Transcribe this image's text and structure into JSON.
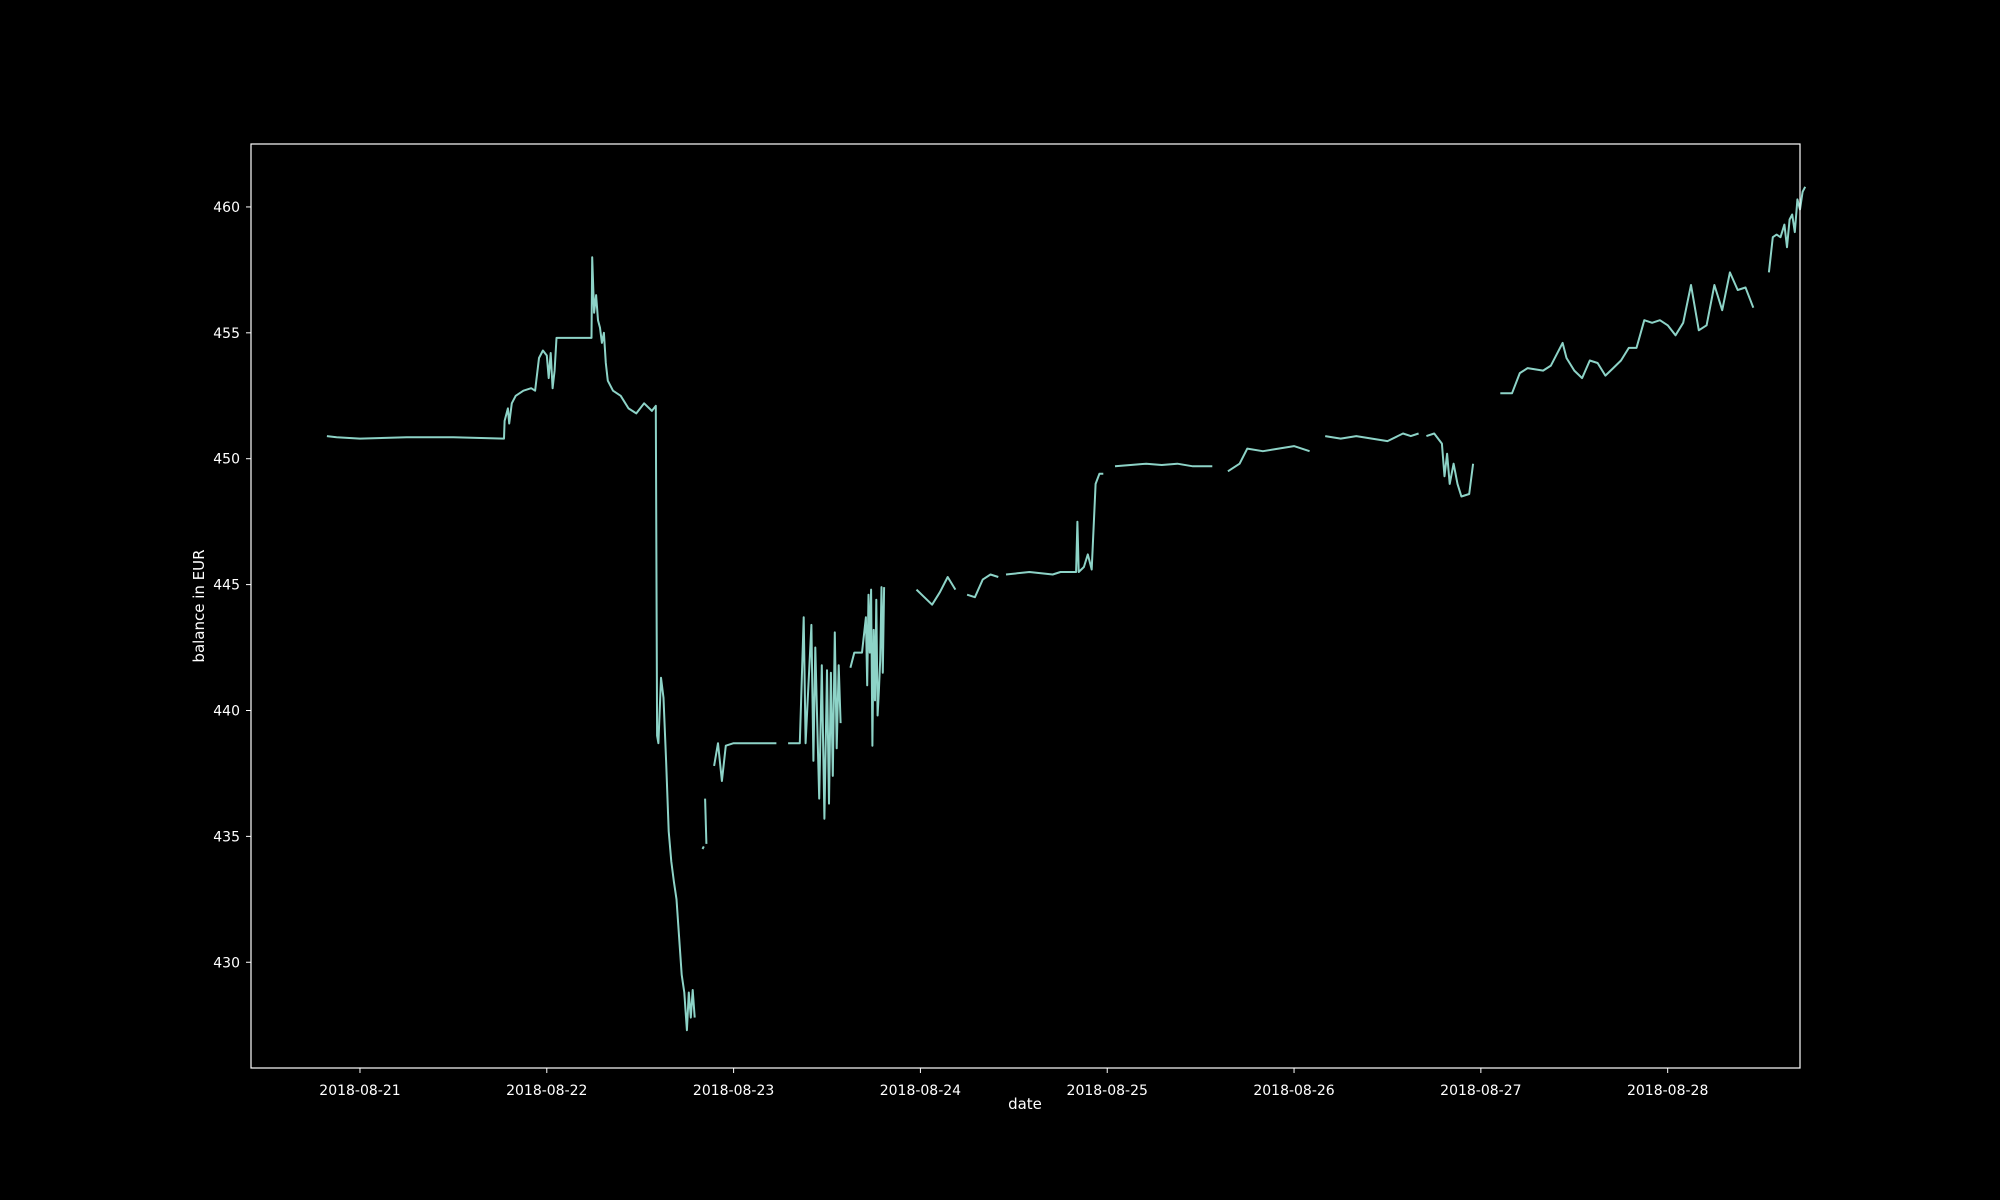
{
  "chart_data": {
    "type": "line",
    "title": "",
    "xlabel": "date",
    "ylabel": "balance in EUR",
    "x_ticks": [
      "2018-08-21",
      "2018-08-22",
      "2018-08-23",
      "2018-08-24",
      "2018-08-25",
      "2018-08-26",
      "2018-08-27",
      "2018-08-28"
    ],
    "y_ticks": [
      430,
      435,
      440,
      445,
      450,
      455,
      460
    ],
    "xlim": [
      "2018-08-20 10:00",
      "2018-08-28 17:00"
    ],
    "ylim": [
      425.8,
      462.5
    ],
    "grid": false,
    "legend": "none",
    "colors": {
      "background": "#000000",
      "axes": "#ffffff",
      "line": "#8dd3c7"
    },
    "series": [
      {
        "segments": [
          [
            [
              "2018-08-20 19:45",
              450.9
            ],
            [
              "2018-08-20 21:00",
              450.85
            ],
            [
              "2018-08-21 00:00",
              450.8
            ],
            [
              "2018-08-21 06:00",
              450.85
            ],
            [
              "2018-08-21 12:00",
              450.85
            ],
            [
              "2018-08-21 18:30",
              450.8
            ],
            [
              "2018-08-21 18:35",
              451.5
            ],
            [
              "2018-08-21 19:00",
              452.0
            ],
            [
              "2018-08-21 19:10",
              451.4
            ],
            [
              "2018-08-21 19:30",
              452.2
            ],
            [
              "2018-08-21 20:00",
              452.5
            ],
            [
              "2018-08-21 21:00",
              452.7
            ],
            [
              "2018-08-21 22:00",
              452.8
            ],
            [
              "2018-08-21 22:30",
              452.7
            ],
            [
              "2018-08-21 23:00",
              454.0
            ],
            [
              "2018-08-21 23:30",
              454.3
            ],
            [
              "2018-08-22 00:00",
              454.1
            ],
            [
              "2018-08-22 00:15",
              453.2
            ],
            [
              "2018-08-22 00:30",
              454.2
            ],
            [
              "2018-08-22 00:45",
              452.8
            ],
            [
              "2018-08-22 01:00",
              453.5
            ],
            [
              "2018-08-22 01:15",
              454.8
            ],
            [
              "2018-08-22 03:00",
              454.8
            ],
            [
              "2018-08-22 05:45",
              454.8
            ],
            [
              "2018-08-22 05:50",
              458.0
            ],
            [
              "2018-08-22 06:05",
              455.8
            ],
            [
              "2018-08-22 06:20",
              456.5
            ],
            [
              "2018-08-22 06:35",
              455.5
            ],
            [
              "2018-08-22 06:50",
              455.2
            ],
            [
              "2018-08-22 07:05",
              454.6
            ],
            [
              "2018-08-22 07:20",
              455.0
            ],
            [
              "2018-08-22 07:35",
              453.8
            ],
            [
              "2018-08-22 07:50",
              453.1
            ],
            [
              "2018-08-22 08:30",
              452.7
            ],
            [
              "2018-08-22 09:30",
              452.5
            ],
            [
              "2018-08-22 10:30",
              452.0
            ],
            [
              "2018-08-22 11:30",
              451.8
            ],
            [
              "2018-08-22 12:30",
              452.2
            ],
            [
              "2018-08-22 13:30",
              451.9
            ],
            [
              "2018-08-22 14:00",
              452.1
            ],
            [
              "2018-08-22 14:10",
              439.0
            ],
            [
              "2018-08-22 14:20",
              438.7
            ],
            [
              "2018-08-22 14:40",
              441.3
            ],
            [
              "2018-08-22 15:00",
              440.5
            ],
            [
              "2018-08-22 15:20",
              438.0
            ],
            [
              "2018-08-22 15:40",
              435.2
            ],
            [
              "2018-08-22 16:00",
              434.0
            ],
            [
              "2018-08-22 16:20",
              433.2
            ],
            [
              "2018-08-22 16:40",
              432.5
            ],
            [
              "2018-08-22 17:00",
              431.0
            ],
            [
              "2018-08-22 17:20",
              429.5
            ],
            [
              "2018-08-22 17:40",
              428.8
            ],
            [
              "2018-08-22 18:00",
              427.3
            ],
            [
              "2018-08-22 18:15",
              428.8
            ],
            [
              "2018-08-22 18:30",
              427.8
            ],
            [
              "2018-08-22 18:45",
              428.9
            ],
            [
              "2018-08-22 19:00",
              427.8
            ]
          ],
          [
            [
              "2018-08-22 20:00",
              434.5
            ],
            [
              "2018-08-22 20:10",
              434.6
            ]
          ],
          [
            [
              "2018-08-22 20:20",
              436.5
            ],
            [
              "2018-08-22 20:30",
              434.7
            ]
          ],
          [
            [
              "2018-08-22 21:30",
              437.8
            ],
            [
              "2018-08-22 22:00",
              438.7
            ],
            [
              "2018-08-22 22:30",
              437.2
            ],
            [
              "2018-08-22 23:00",
              438.6
            ],
            [
              "2018-08-23 00:00",
              438.7
            ],
            [
              "2018-08-23 03:00",
              438.7
            ],
            [
              "2018-08-23 05:30",
              438.7
            ]
          ],
          [
            [
              "2018-08-23 07:00",
              438.7
            ],
            [
              "2018-08-23 08:30",
              438.7
            ],
            [
              "2018-08-23 09:00",
              443.7
            ],
            [
              "2018-08-23 09:15",
              438.7
            ],
            [
              "2018-08-23 10:00",
              443.4
            ],
            [
              "2018-08-23 10:15",
              438.0
            ],
            [
              "2018-08-23 10:30",
              442.5
            ],
            [
              "2018-08-23 11:00",
              436.5
            ],
            [
              "2018-08-23 11:20",
              441.8
            ],
            [
              "2018-08-23 11:40",
              435.7
            ],
            [
              "2018-08-23 12:00",
              441.6
            ],
            [
              "2018-08-23 12:15",
              436.3
            ],
            [
              "2018-08-23 12:30",
              441.5
            ],
            [
              "2018-08-23 12:45",
              437.4
            ],
            [
              "2018-08-23 13:00",
              443.1
            ],
            [
              "2018-08-23 13:15",
              438.5
            ],
            [
              "2018-08-23 13:30",
              441.8
            ],
            [
              "2018-08-23 13:45",
              439.5
            ]
          ],
          [
            [
              "2018-08-23 15:00",
              441.7
            ],
            [
              "2018-08-23 15:30",
              442.3
            ],
            [
              "2018-08-23 16:30",
              442.3
            ],
            [
              "2018-08-23 17:00",
              443.7
            ],
            [
              "2018-08-23 17:10",
              441.0
            ],
            [
              "2018-08-23 17:20",
              444.6
            ],
            [
              "2018-08-23 17:30",
              442.3
            ],
            [
              "2018-08-23 17:40",
              444.8
            ],
            [
              "2018-08-23 17:50",
              438.6
            ],
            [
              "2018-08-23 18:00",
              443.2
            ],
            [
              "2018-08-23 18:10",
              440.4
            ],
            [
              "2018-08-23 18:20",
              444.4
            ],
            [
              "2018-08-23 18:30",
              439.8
            ],
            [
              "2018-08-23 18:40",
              440.8
            ],
            [
              "2018-08-23 18:50",
              442.0
            ],
            [
              "2018-08-23 19:00",
              444.9
            ],
            [
              "2018-08-23 19:10",
              441.5
            ],
            [
              "2018-08-23 19:20",
              444.9
            ]
          ],
          [
            [
              "2018-08-23 23:30",
              444.8
            ],
            [
              "2018-08-24 00:30",
              444.5
            ],
            [
              "2018-08-24 01:30",
              444.2
            ],
            [
              "2018-08-24 02:30",
              444.7
            ],
            [
              "2018-08-24 03:30",
              445.3
            ],
            [
              "2018-08-24 04:30",
              444.8
            ]
          ],
          [
            [
              "2018-08-24 06:00",
              444.6
            ],
            [
              "2018-08-24 07:00",
              444.5
            ],
            [
              "2018-08-24 08:00",
              445.2
            ],
            [
              "2018-08-24 09:00",
              445.4
            ],
            [
              "2018-08-24 10:00",
              445.3
            ]
          ],
          [
            [
              "2018-08-24 11:00",
              445.4
            ],
            [
              "2018-08-24 14:00",
              445.5
            ],
            [
              "2018-08-24 17:00",
              445.4
            ],
            [
              "2018-08-24 18:00",
              445.5
            ],
            [
              "2018-08-24 20:00",
              445.5
            ],
            [
              "2018-08-24 20:10",
              447.5
            ],
            [
              "2018-08-24 20:20",
              445.5
            ],
            [
              "2018-08-24 21:00",
              445.7
            ],
            [
              "2018-08-24 21:30",
              446.2
            ],
            [
              "2018-08-24 22:00",
              445.6
            ],
            [
              "2018-08-24 22:30",
              449.0
            ],
            [
              "2018-08-24 23:00",
              449.4
            ],
            [
              "2018-08-24 23:30",
              449.4
            ]
          ],
          [
            [
              "2018-08-25 01:00",
              449.7
            ],
            [
              "2018-08-25 03:00",
              449.75
            ],
            [
              "2018-08-25 05:00",
              449.8
            ],
            [
              "2018-08-25 07:00",
              449.75
            ],
            [
              "2018-08-25 09:00",
              449.8
            ],
            [
              "2018-08-25 11:00",
              449.7
            ],
            [
              "2018-08-25 13:30",
              449.7
            ]
          ],
          [
            [
              "2018-08-25 15:30",
              449.5
            ],
            [
              "2018-08-25 17:00",
              449.8
            ],
            [
              "2018-08-25 18:00",
              450.4
            ],
            [
              "2018-08-25 20:00",
              450.3
            ],
            [
              "2018-08-25 22:00",
              450.4
            ],
            [
              "2018-08-26 00:00",
              450.5
            ],
            [
              "2018-08-26 02:00",
              450.3
            ]
          ],
          [
            [
              "2018-08-26 04:00",
              450.9
            ],
            [
              "2018-08-26 06:00",
              450.8
            ],
            [
              "2018-08-26 08:00",
              450.9
            ],
            [
              "2018-08-26 10:00",
              450.8
            ],
            [
              "2018-08-26 12:00",
              450.7
            ],
            [
              "2018-08-26 14:00",
              451.0
            ],
            [
              "2018-08-26 15:00",
              450.9
            ],
            [
              "2018-08-26 16:00",
              451.0
            ]
          ],
          [
            [
              "2018-08-26 17:00",
              450.9
            ],
            [
              "2018-08-26 18:00",
              451.0
            ],
            [
              "2018-08-26 19:00",
              450.6
            ],
            [
              "2018-08-26 19:20",
              449.3
            ],
            [
              "2018-08-26 19:40",
              450.2
            ],
            [
              "2018-08-26 20:00",
              449.0
            ],
            [
              "2018-08-26 20:30",
              449.8
            ],
            [
              "2018-08-26 21:00",
              449.0
            ],
            [
              "2018-08-26 21:30",
              448.5
            ],
            [
              "2018-08-26 22:30",
              448.6
            ],
            [
              "2018-08-26 23:00",
              449.8
            ]
          ],
          [
            [
              "2018-08-27 02:30",
              452.6
            ],
            [
              "2018-08-27 04:00",
              452.6
            ],
            [
              "2018-08-27 05:00",
              453.4
            ],
            [
              "2018-08-27 06:00",
              453.6
            ],
            [
              "2018-08-27 08:00",
              453.5
            ],
            [
              "2018-08-27 09:00",
              453.7
            ],
            [
              "2018-08-27 10:30",
              454.6
            ],
            [
              "2018-08-27 11:00",
              454.0
            ],
            [
              "2018-08-27 12:00",
              453.5
            ],
            [
              "2018-08-27 13:00",
              453.2
            ],
            [
              "2018-08-27 14:00",
              453.9
            ],
            [
              "2018-08-27 15:00",
              453.8
            ],
            [
              "2018-08-27 16:00",
              453.3
            ],
            [
              "2018-08-27 17:00",
              453.6
            ],
            [
              "2018-08-27 18:00",
              453.9
            ],
            [
              "2018-08-27 19:00",
              454.4
            ],
            [
              "2018-08-27 20:00",
              454.4
            ],
            [
              "2018-08-27 21:00",
              455.5
            ],
            [
              "2018-08-27 22:00",
              455.4
            ],
            [
              "2018-08-27 23:00",
              455.5
            ],
            [
              "2018-08-28 00:00",
              455.3
            ],
            [
              "2018-08-28 01:00",
              454.9
            ],
            [
              "2018-08-28 02:00",
              455.4
            ],
            [
              "2018-08-28 03:00",
              456.9
            ],
            [
              "2018-08-28 04:00",
              455.1
            ],
            [
              "2018-08-28 05:00",
              455.3
            ],
            [
              "2018-08-28 06:00",
              456.9
            ],
            [
              "2018-08-28 07:00",
              455.9
            ],
            [
              "2018-08-28 08:00",
              457.4
            ],
            [
              "2018-08-28 09:00",
              456.7
            ],
            [
              "2018-08-28 10:00",
              456.8
            ],
            [
              "2018-08-28 11:00",
              456.0
            ]
          ],
          [
            [
              "2018-08-28 13:00",
              457.4
            ],
            [
              "2018-08-28 13:30",
              458.8
            ],
            [
              "2018-08-28 14:00",
              458.9
            ],
            [
              "2018-08-28 14:30",
              458.8
            ],
            [
              "2018-08-28 15:00",
              459.3
            ],
            [
              "2018-08-28 15:20",
              458.4
            ],
            [
              "2018-08-28 15:40",
              459.5
            ],
            [
              "2018-08-28 16:00",
              459.7
            ],
            [
              "2018-08-28 16:20",
              459.0
            ],
            [
              "2018-08-28 16:40",
              460.3
            ],
            [
              "2018-08-28 17:00",
              459.9
            ],
            [
              "2018-08-28 17:20",
              460.6
            ],
            [
              "2018-08-28 17:40",
              460.8
            ]
          ]
        ]
      }
    ]
  }
}
